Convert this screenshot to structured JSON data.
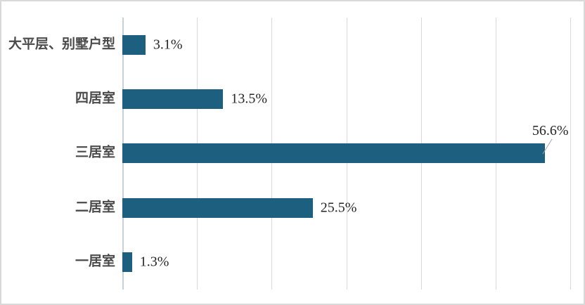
{
  "chart_data": {
    "type": "bar",
    "orientation": "horizontal",
    "title": "",
    "xlabel": "",
    "ylabel": "",
    "categories": [
      "大平层、别墅户型",
      "四居室",
      "三居室",
      "二居室",
      "一居室"
    ],
    "values": [
      3.1,
      13.5,
      56.6,
      25.5,
      1.3
    ],
    "value_labels": [
      "3.1%",
      "13.5%",
      "56.6%",
      "25.5%",
      "1.3%"
    ],
    "callouts": [
      false,
      false,
      true,
      false,
      false
    ],
    "xlim": [
      0,
      60
    ],
    "ticks": [
      0,
      10,
      20,
      30,
      40,
      50,
      60
    ],
    "grid": true,
    "legend": "none",
    "bar_color": "#1d5f7f",
    "gridline_color": "#d9d9d9",
    "axis_color": "#c7d0d6",
    "label_color": "#4a4a4a",
    "value_color": "#262626"
  }
}
